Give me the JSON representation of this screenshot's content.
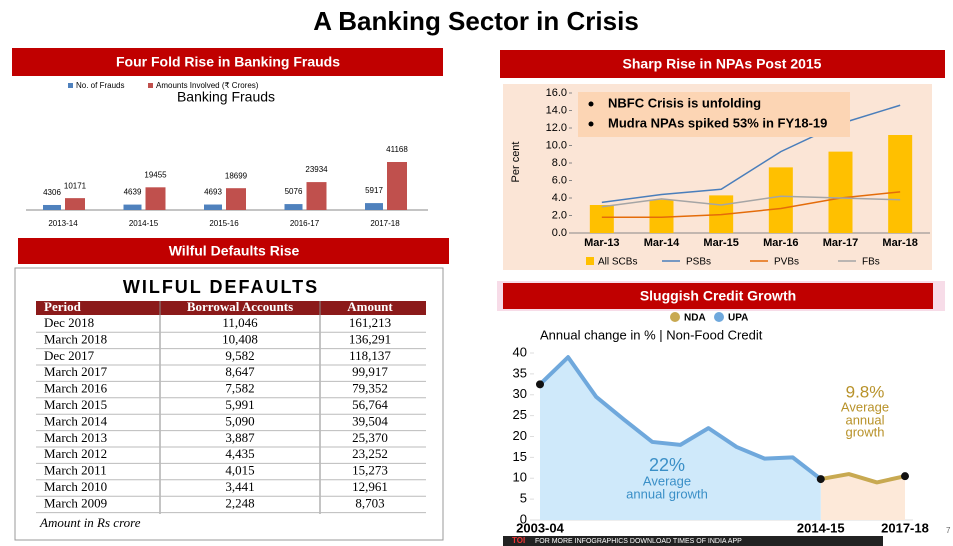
{
  "title": "A Banking Sector in Crisis",
  "chart_data": [
    {
      "type": "bar",
      "header": "Four Fold Rise in Banking Frauds",
      "title": "Banking Frauds",
      "categories": [
        "2013-14",
        "2014-15",
        "2015-16",
        "2016-17",
        "2017-18"
      ],
      "series": [
        {
          "name": "No. of Frauds",
          "color": "#4f81bd",
          "values": [
            4306,
            4639,
            4693,
            5076,
            5917
          ]
        },
        {
          "name": "Amounts Involved (₹ Crores)",
          "color": "#c0504d",
          "values": [
            10171,
            19455,
            18699,
            23934,
            41168
          ]
        }
      ]
    },
    {
      "type": "combo",
      "header": "Sharp Rise in NPAs Post 2015",
      "ylabel": "Per cent",
      "categories": [
        "Mar-13",
        "Mar-14",
        "Mar-15",
        "Mar-16",
        "Mar-17",
        "Mar-18"
      ],
      "ylim": [
        0,
        16
      ],
      "yticks": [
        {
          "value": 0,
          "label": "0.0"
        },
        {
          "value": 2,
          "label": "2.0"
        },
        {
          "value": 4,
          "label": "4.0"
        },
        {
          "value": 6,
          "label": "6.0"
        },
        {
          "value": 8,
          "label": "8.0"
        },
        {
          "value": 10,
          "label": "10.0"
        },
        {
          "value": 12,
          "label": "12.0"
        },
        {
          "value": 14,
          "label": "14.0"
        },
        {
          "value": 16,
          "label": "16.0"
        }
      ],
      "series": [
        {
          "name": "All SCBs",
          "kind": "bar",
          "color": "#ffc000",
          "values": [
            3.2,
            3.8,
            4.3,
            7.5,
            9.3,
            11.2
          ]
        },
        {
          "name": "PSBs",
          "kind": "line",
          "color": "#4a7ebb",
          "values": [
            3.5,
            4.4,
            5.0,
            9.3,
            12.5,
            14.6
          ]
        },
        {
          "name": "PVBs",
          "kind": "line",
          "color": "#e46c0a",
          "values": [
            1.8,
            1.8,
            2.1,
            2.8,
            4.0,
            4.7
          ]
        },
        {
          "name": "FBs",
          "kind": "line",
          "color": "#a5a5a5",
          "values": [
            3.0,
            3.9,
            3.2,
            4.2,
            4.0,
            3.8
          ]
        }
      ],
      "annotations": [
        "NBFC Crisis is unfolding",
        "Mudra NPAs spiked 53% in FY18-19"
      ]
    },
    {
      "type": "area",
      "header": "Sluggish Credit Growth",
      "title": "Annual change in % | Non-Food Credit",
      "categories": [
        "2003-04",
        null,
        null,
        null,
        null,
        null,
        null,
        null,
        null,
        null,
        "2014-15",
        null,
        null,
        "2017-18"
      ],
      "ylim": [
        0,
        40
      ],
      "yticks": [
        0,
        5,
        10,
        15,
        20,
        25,
        30,
        35,
        40
      ],
      "series": [
        {
          "name": "NDA",
          "color": "#c8a951",
          "fill": "#fde9d9",
          "values": [
            null,
            null,
            null,
            null,
            null,
            null,
            null,
            null,
            null,
            null,
            9.8,
            11,
            9,
            10.5
          ]
        },
        {
          "name": "UPA",
          "color": "#6fa8dc",
          "fill": "#cfe9fa",
          "values": [
            32.5,
            39,
            29.5,
            24,
            18.7,
            18,
            22,
            17.5,
            14.7,
            15,
            9.8,
            null,
            null,
            null
          ]
        }
      ],
      "annotations": [
        "22%",
        "Average",
        "annual growth",
        "9.8%",
        "Average",
        "annual",
        "growth"
      ]
    }
  ],
  "table": {
    "header": "Wilful Defaults Rise",
    "title": "WILFUL DEFAULTS",
    "columns": [
      "Period",
      "Borrowal Accounts",
      "Amount"
    ],
    "rows": [
      [
        "Dec 2018",
        "11,046",
        "161,213"
      ],
      [
        "March 2018",
        "10,408",
        "136,291"
      ],
      [
        "Dec 2017",
        "9,582",
        "118,137"
      ],
      [
        "March 2017",
        "8,647",
        "99,917"
      ],
      [
        "March 2016",
        "7,582",
        "79,352"
      ],
      [
        "March 2015",
        "5,991",
        "56,764"
      ],
      [
        "March 2014",
        "5,090",
        "39,504"
      ],
      [
        "March 2013",
        "3,887",
        "25,370"
      ],
      [
        "March 2012",
        "4,435",
        "23,252"
      ],
      [
        "March 2011",
        "4,015",
        "15,273"
      ],
      [
        "March 2010",
        "3,441",
        "12,961"
      ],
      [
        "March 2009",
        "2,248",
        "8,703"
      ]
    ],
    "note": "Amount in Rs crore"
  },
  "footer_brand": "TOI",
  "footer": "FOR MORE INFOGRAPHICS DOWNLOAD TIMES OF INDIA APP",
  "page_number": "7"
}
